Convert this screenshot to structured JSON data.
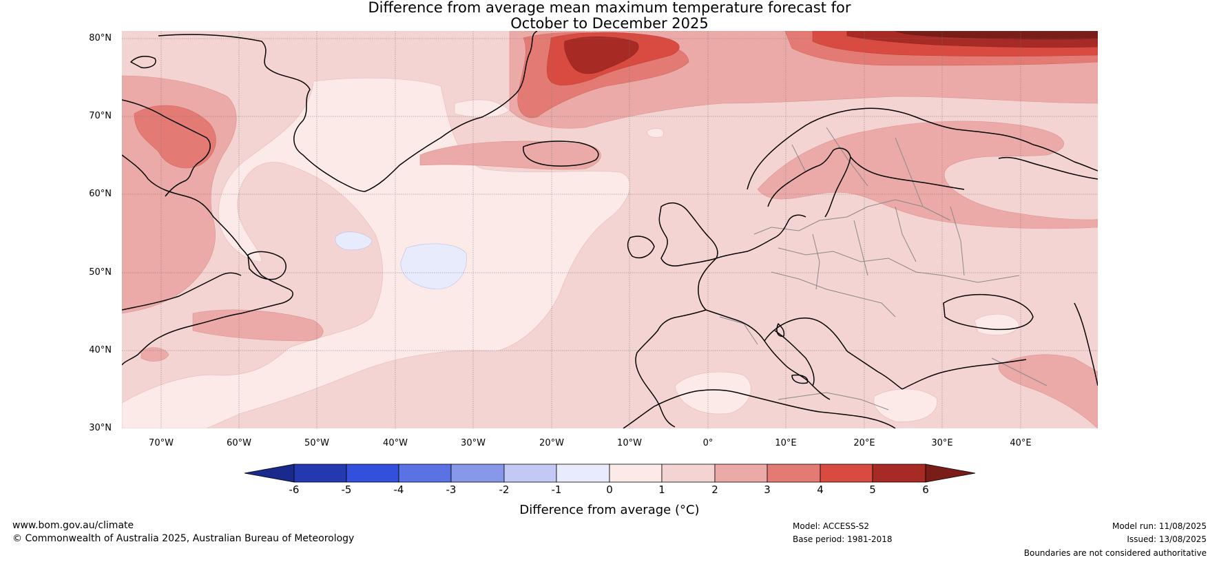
{
  "title": {
    "line1": "Difference from average mean maximum temperature forecast for",
    "line2": "October to December 2025"
  },
  "map": {
    "lat_labels": [
      "80°N",
      "70°N",
      "60°N",
      "50°N",
      "40°N",
      "30°N"
    ],
    "lon_labels": [
      "70°W",
      "60°W",
      "50°W",
      "40°W",
      "30°W",
      "20°W",
      "10°W",
      "0°",
      "10°E",
      "20°E",
      "30°E",
      "40°E"
    ],
    "colors": {
      "lt_neg6": "#1a2a8c",
      "neg6_neg5": "#2438b0",
      "neg5_neg4": "#3350dd",
      "neg4_neg3": "#5b72e4",
      "neg3_neg2": "#8797ea",
      "neg2_neg1": "#c1c9f4",
      "neg1_0": "#e8ebfb",
      "0_1": "#fbeae8",
      "1_2": "#f4d4d2",
      "2_3": "#ebaaa7",
      "3_4": "#e37b74",
      "4_5": "#d94a40",
      "5_6": "#a82a25",
      "gt6": "#7a1c18"
    }
  },
  "colorbar": {
    "ticks": [
      "-6",
      "-5",
      "-4",
      "-3",
      "-2",
      "-1",
      "0",
      "1",
      "2",
      "3",
      "4",
      "5",
      "6"
    ],
    "label": "Difference from average (°C)"
  },
  "footer": {
    "website": "www.bom.gov.au/climate",
    "copyright": "© Commonwealth of Australia 2025, Australian Bureau of Meteorology",
    "model": "Model: ACCESS-S2",
    "base_period": "Base period: 1981-2018",
    "model_run": "Model run: 11/08/2025",
    "issued": "Issued: 13/08/2025",
    "disclaimer": "Boundaries are not considered authoritative"
  }
}
